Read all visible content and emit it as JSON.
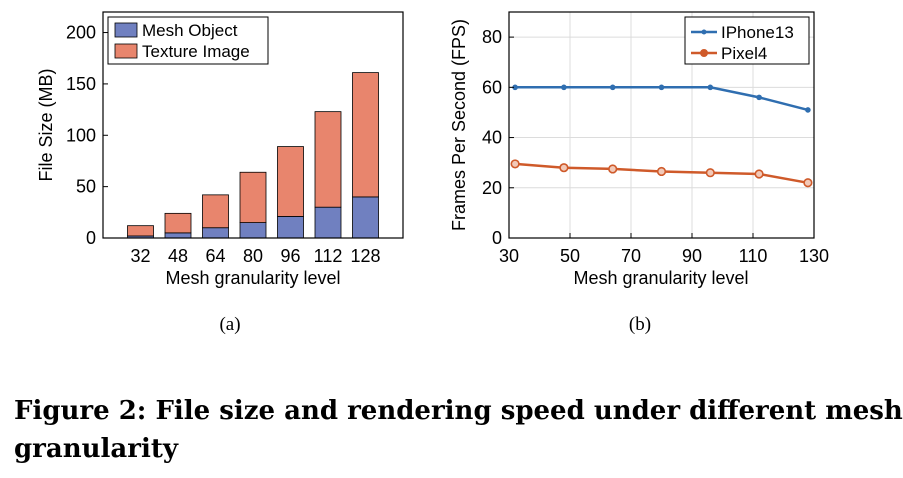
{
  "chart_data": [
    {
      "type": "bar",
      "stacked": true,
      "panel_label": "(a)",
      "xlabel": "Mesh granularity level",
      "ylabel": "File Size (MB)",
      "categories": [
        "32",
        "48",
        "64",
        "80",
        "96",
        "112",
        "128"
      ],
      "series": [
        {
          "name": "Mesh Object",
          "values": [
            2,
            5,
            10,
            15,
            21,
            30,
            40
          ],
          "color": "#7080c0"
        },
        {
          "name": "Texture Image",
          "values": [
            10,
            19,
            32,
            49,
            68,
            93,
            121
          ],
          "color": "#e8856d"
        }
      ],
      "ylim": [
        0,
        220
      ],
      "yticks": [
        "0",
        "50",
        "100",
        "150",
        "200"
      ],
      "legend": "top-left",
      "grid": false
    },
    {
      "type": "line",
      "panel_label": "(b)",
      "xlabel": "Mesh granularity level",
      "ylabel": "Frames Per Second (FPS)",
      "x": [
        32,
        48,
        64,
        80,
        96,
        112,
        128
      ],
      "series": [
        {
          "name": "IPhone13",
          "values": [
            60,
            60,
            60,
            60,
            60,
            56,
            51
          ],
          "color": "#2f6eb0",
          "marker": "dot"
        },
        {
          "name": "Pixel4",
          "values": [
            29.5,
            28,
            27.5,
            26.5,
            26,
            25.5,
            22
          ],
          "color": "#cf5a2a",
          "marker": "circle"
        }
      ],
      "xlim": [
        30,
        130
      ],
      "ylim": [
        0,
        90
      ],
      "xticks": [
        "30",
        "50",
        "70",
        "90",
        "110",
        "130"
      ],
      "yticks": [
        "0",
        "20",
        "40",
        "60",
        "80"
      ],
      "legend": "top-right",
      "grid": true
    }
  ],
  "caption": {
    "line1": "Figure 2: File size and rendering speed under different mesh",
    "line2": "granularity"
  }
}
